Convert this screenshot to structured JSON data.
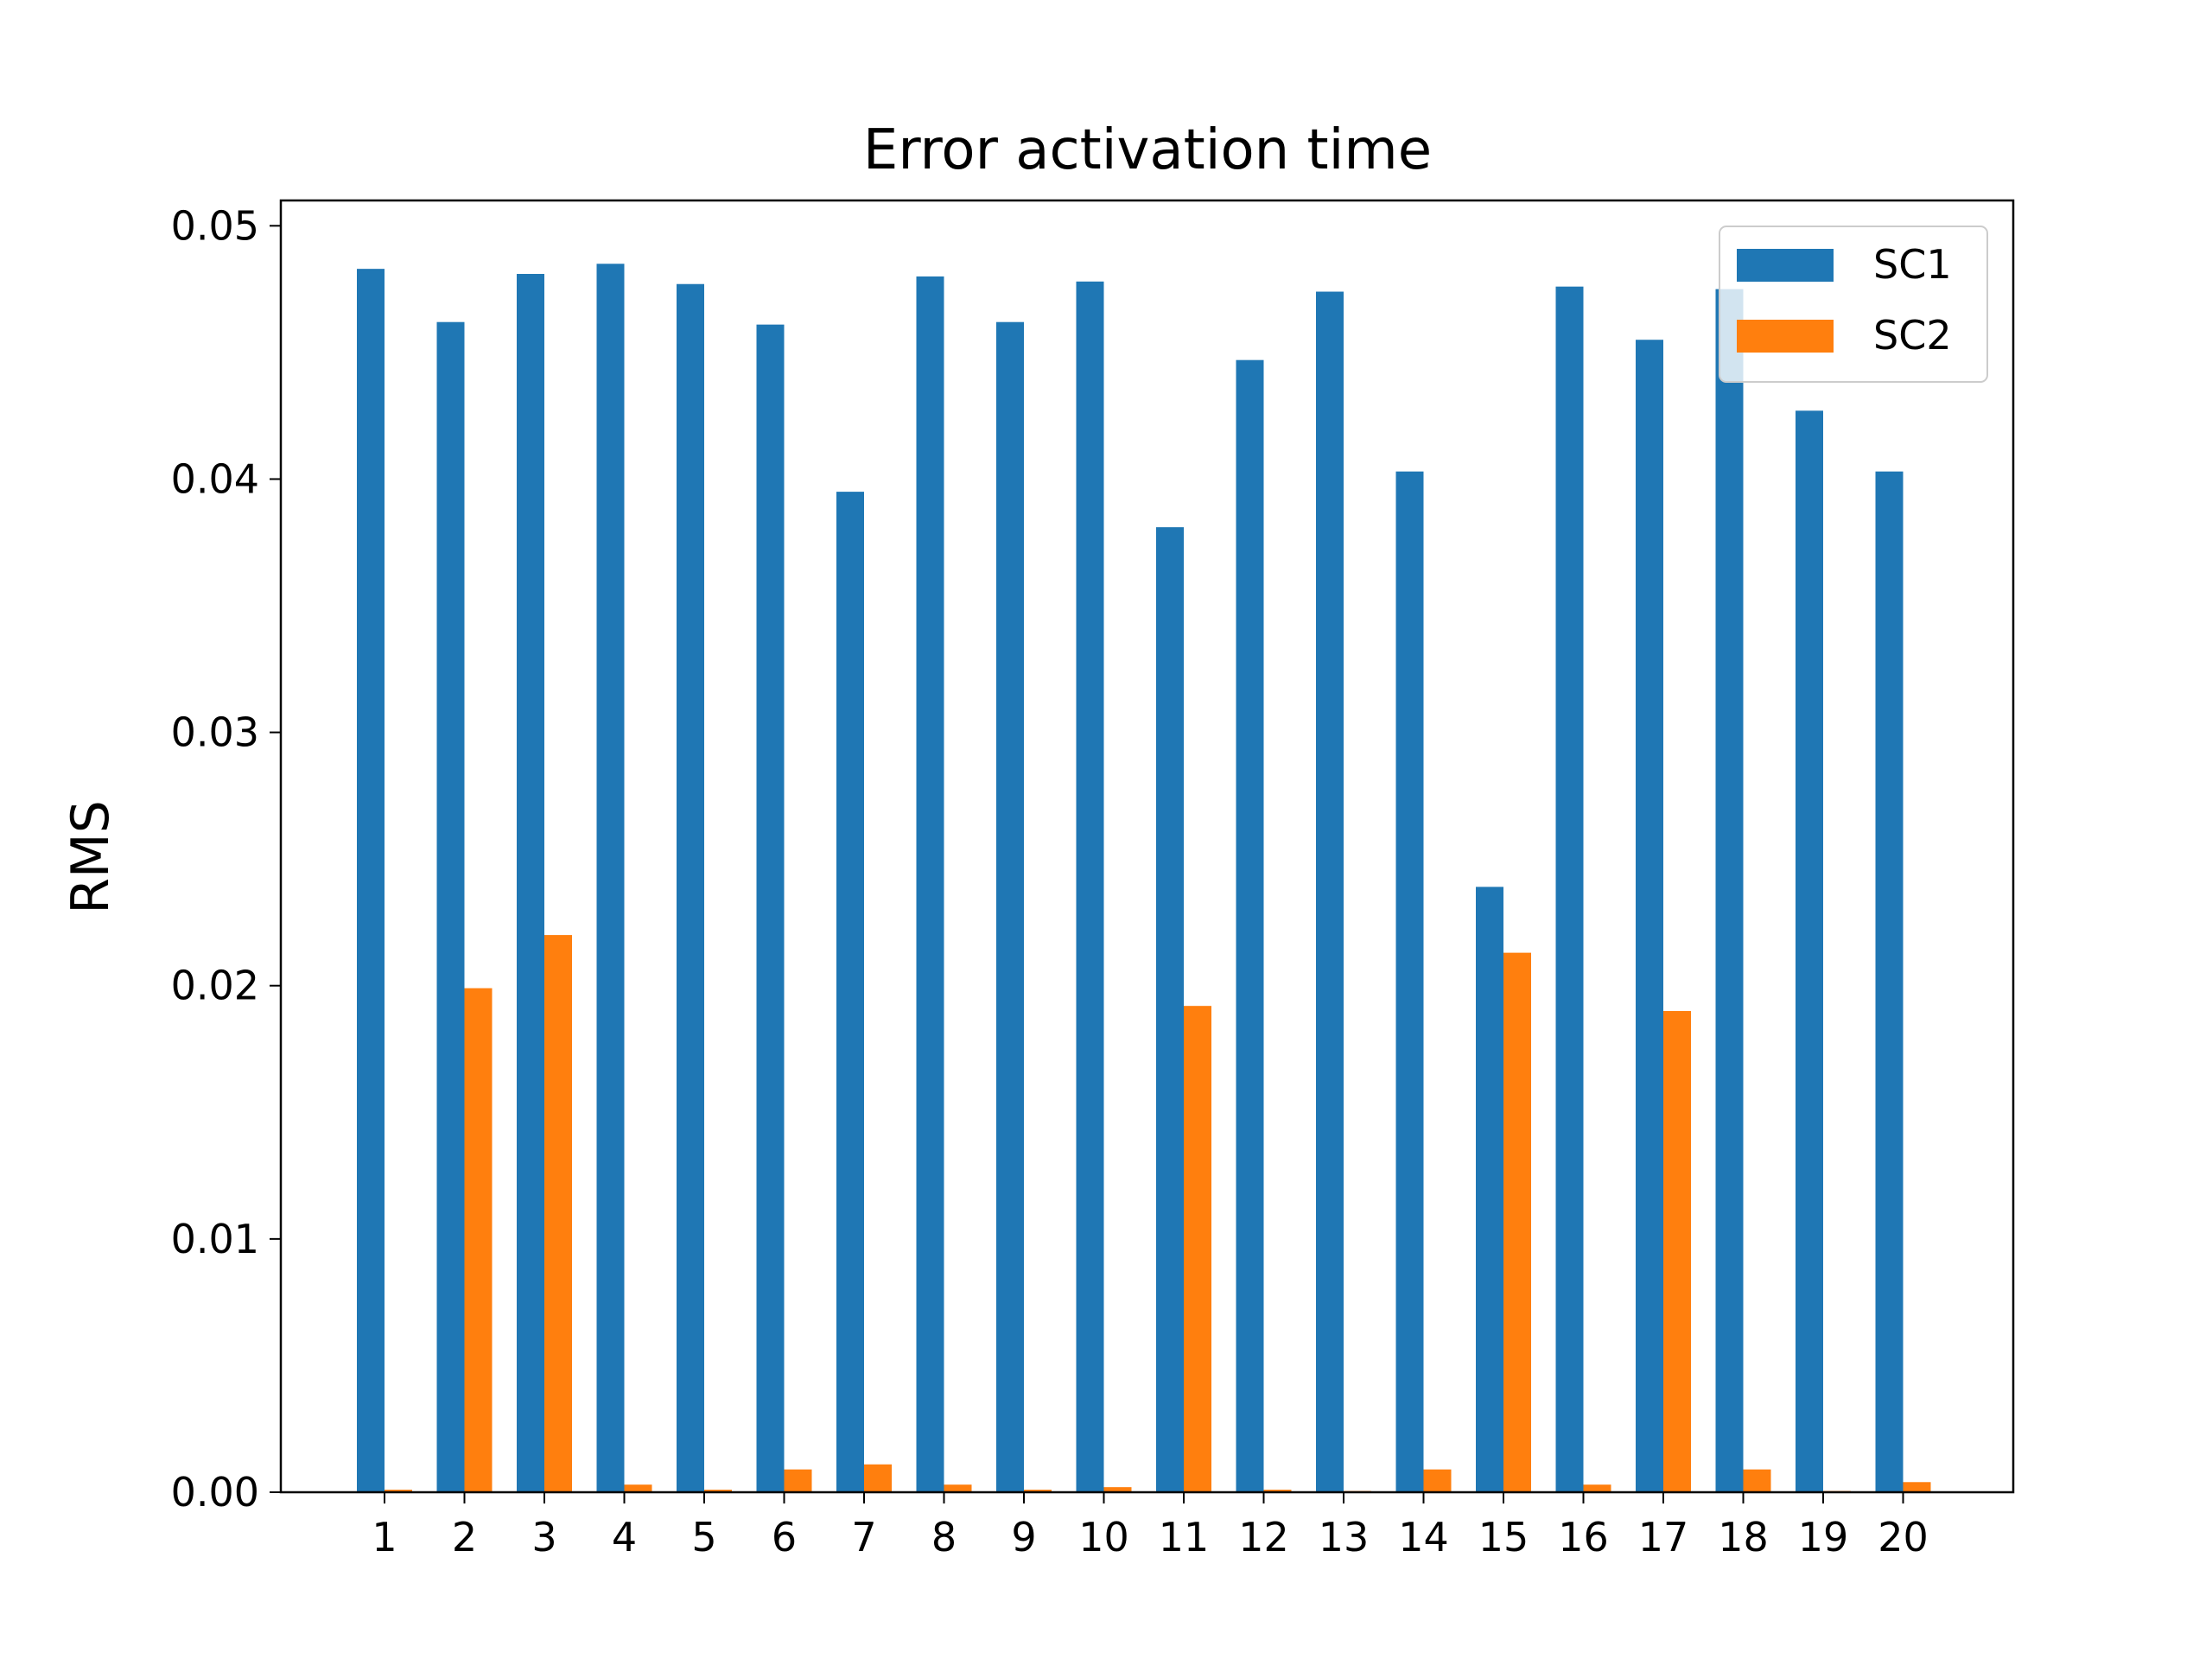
{
  "chart_data": {
    "type": "bar",
    "title": "Error activation time",
    "xlabel": "",
    "ylabel": "RMS",
    "categories": [
      "1",
      "2",
      "3",
      "4",
      "5",
      "6",
      "7",
      "8",
      "9",
      "10",
      "11",
      "12",
      "13",
      "14",
      "15",
      "16",
      "17",
      "18",
      "19",
      "20"
    ],
    "series": [
      {
        "name": "SC1",
        "color": "#1f77b4",
        "values": [
          0.0483,
          0.0462,
          0.0481,
          0.0485,
          0.0477,
          0.0461,
          0.0395,
          0.048,
          0.0462,
          0.0478,
          0.0381,
          0.0447,
          0.0474,
          0.0403,
          0.0239,
          0.0476,
          0.0455,
          0.0475,
          0.0427,
          0.0403
        ]
      },
      {
        "name": "SC2",
        "color": "#ff7f0e",
        "values": [
          0.0001,
          0.0199,
          0.022,
          0.0003,
          0.0001,
          0.0009,
          0.0011,
          0.0003,
          0.0001,
          0.0002,
          0.0192,
          0.0001,
          5e-05,
          0.0009,
          0.0213,
          0.0003,
          0.019,
          0.0009,
          5e-05,
          0.0004
        ]
      }
    ],
    "ylim": [
      0,
      0.051
    ],
    "yticks": [
      "0.00",
      "0.01",
      "0.02",
      "0.03",
      "0.04",
      "0.05"
    ],
    "grid": false,
    "legend": "top-right"
  }
}
